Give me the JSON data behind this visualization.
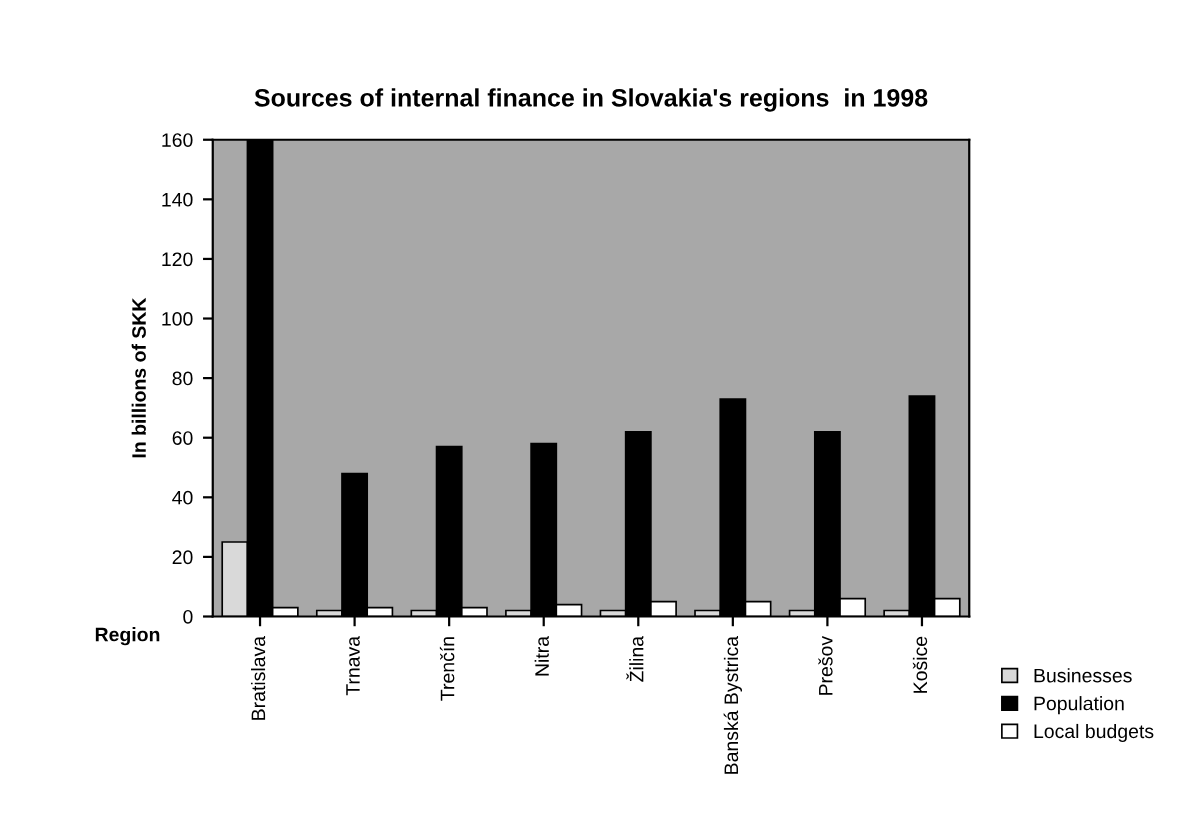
{
  "chart_data": {
    "type": "bar",
    "title": "Sources of internal finance in Slovakia's regions  in 1998",
    "xlabel": "Region",
    "ylabel": "In billions of SKK",
    "categories": [
      "Bratislava",
      "Trnava",
      "Trenčín",
      "Nitra",
      "Žilina",
      "Banská Bystrica",
      "Prešov",
      "Košice"
    ],
    "series": [
      {
        "name": "Businesses",
        "color": "#d9d9d9",
        "values": [
          25,
          2,
          2,
          2,
          2,
          2,
          2,
          2
        ]
      },
      {
        "name": "Population",
        "color": "#000000",
        "values": [
          160,
          48,
          57,
          58,
          62,
          73,
          62,
          74
        ]
      },
      {
        "name": "Local budgets",
        "color": "#ffffff",
        "values": [
          3,
          3,
          3,
          4,
          5,
          5,
          6,
          6
        ]
      }
    ],
    "ylim": [
      0,
      160
    ],
    "yticks": [
      0,
      20,
      40,
      60,
      80,
      100,
      120,
      140,
      160
    ],
    "grid": false,
    "legend": "right"
  }
}
